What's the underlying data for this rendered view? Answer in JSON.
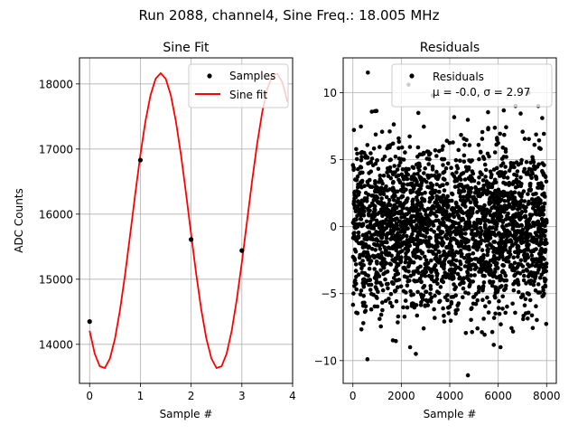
{
  "suptitle": "Run 2088, channel4, Sine Freq.: 18.005 MHz",
  "colors": {
    "fit": "#ff0000",
    "samples": "#000000",
    "grid": "#b0b0b0"
  },
  "chart_data": [
    {
      "type": "line",
      "title": "Sine Fit",
      "xlabel": "Sample #",
      "ylabel": "ADC Counts",
      "xlim": [
        -0.2,
        4.0
      ],
      "ylim": [
        13400,
        18400
      ],
      "xticks": [
        0,
        1,
        2,
        3,
        4
      ],
      "yticks": [
        14000,
        15000,
        16000,
        17000,
        18000
      ],
      "grid": true,
      "legend": {
        "position": "upper-right",
        "entries": [
          "Samples",
          "Sine fit"
        ]
      },
      "series": [
        {
          "name": "Samples",
          "style": "points",
          "x": [
            0,
            1,
            2,
            3
          ],
          "y": [
            14350,
            16830,
            15610,
            15440
          ]
        },
        {
          "name": "Sine fit",
          "style": "line",
          "fit": {
            "amplitude": 2270,
            "offset": 15895,
            "period": 2.27,
            "peak_at": 1.4
          },
          "x_range": [
            0,
            3.9
          ],
          "n_points": 40
        }
      ]
    },
    {
      "type": "scatter",
      "title": "Residuals",
      "xlabel": "Sample #",
      "xlim": [
        -400,
        8400
      ],
      "ylim": [
        -11.7,
        12.6
      ],
      "xticks": [
        0,
        2000,
        4000,
        6000,
        8000
      ],
      "yticks": [
        -10,
        -5,
        0,
        5,
        10
      ],
      "grid": true,
      "legend": {
        "position": "upper-right",
        "label": "Residuals",
        "stats": "μ = -0.0, σ = 2.97"
      },
      "stats": {
        "mu": -0.0,
        "sigma": 2.97
      },
      "n_samples": 8000,
      "series": [
        {
          "name": "Residuals",
          "x_range": [
            0,
            8000
          ],
          "outliers": [
            {
              "x": 620,
              "y": 11.5
            },
            {
              "x": 2300,
              "y": 10.6
            },
            {
              "x": 4750,
              "y": -11.1
            },
            {
              "x": 7250,
              "y": 10.0
            },
            {
              "x": 3300,
              "y": 9.8
            },
            {
              "x": 600,
              "y": -9.9
            },
            {
              "x": 2600,
              "y": -9.5
            }
          ]
        }
      ]
    }
  ]
}
